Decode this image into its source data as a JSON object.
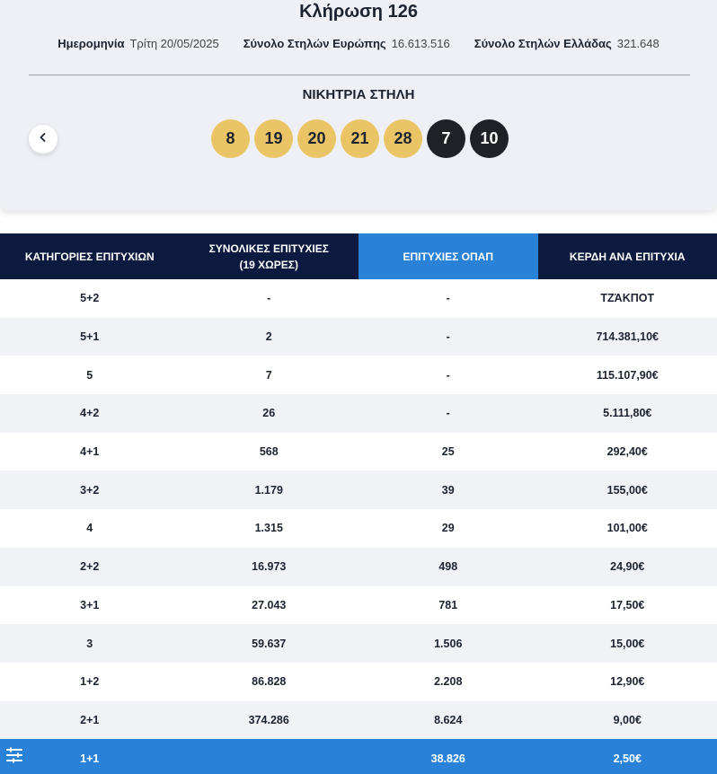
{
  "draw": {
    "title": "Κλήρωση 126",
    "meta": [
      {
        "label": "Ημερομηνία",
        "value": "Τρίτη 20/05/2025"
      },
      {
        "label": "Σύνολο Στηλών Ευρώπης",
        "value": "16.613.516"
      },
      {
        "label": "Σύνολο Στηλών Ελλάδας",
        "value": "321.648"
      }
    ],
    "winning_title": "ΝΙΚΗΤΡΙΑ ΣΤΗΛΗ",
    "main_numbers": [
      "8",
      "19",
      "20",
      "21",
      "28"
    ],
    "star_numbers": [
      "7",
      "10"
    ],
    "prev_icon": "chevron-left-icon"
  },
  "table": {
    "headers": [
      "ΚΑΤΗΓΟΡΙΕΣ ΕΠΙΤΥΧΙΩΝ",
      "ΣΥΝΟΛΙΚΕΣ ΕΠΙΤΥΧΙΕΣ",
      "ΕΠΙΤΥΧΙΕΣ ΟΠΑΠ",
      "ΚΕΡΔΗ ΑΝΑ ΕΠΙΤΥΧΙΑ"
    ],
    "header_sub": "(19 ΧΩΡΕΣ)",
    "rows": [
      [
        "5+2",
        "-",
        "-",
        "ΤΖΆΚΠΟΤ"
      ],
      [
        "5+1",
        "2",
        "-",
        "714.381,10€"
      ],
      [
        "5",
        "7",
        "-",
        "115.107,90€"
      ],
      [
        "4+2",
        "26",
        "-",
        "5.111,80€"
      ],
      [
        "4+1",
        "568",
        "25",
        "292,40€"
      ],
      [
        "3+2",
        "1.179",
        "39",
        "155,00€"
      ],
      [
        "4",
        "1.315",
        "29",
        "101,00€"
      ],
      [
        "2+2",
        "16.973",
        "498",
        "24,90€"
      ],
      [
        "3+1",
        "27.043",
        "781",
        "17,50€"
      ],
      [
        "3",
        "59.637",
        "1.506",
        "15,00€"
      ],
      [
        "1+2",
        "86.828",
        "2.208",
        "12,90€"
      ],
      [
        "2+1",
        "374.286",
        "8.624",
        "9,00€"
      ],
      [
        "1+1",
        "",
        "38.826",
        "2,50€"
      ]
    ]
  },
  "colors": {
    "header_dark": "#0c1a3f",
    "accent_blue": "#2a82d8",
    "ball_gold": "#ebc565",
    "ball_dark": "#1f2126"
  },
  "menu_icon": "menu-lines-icon"
}
